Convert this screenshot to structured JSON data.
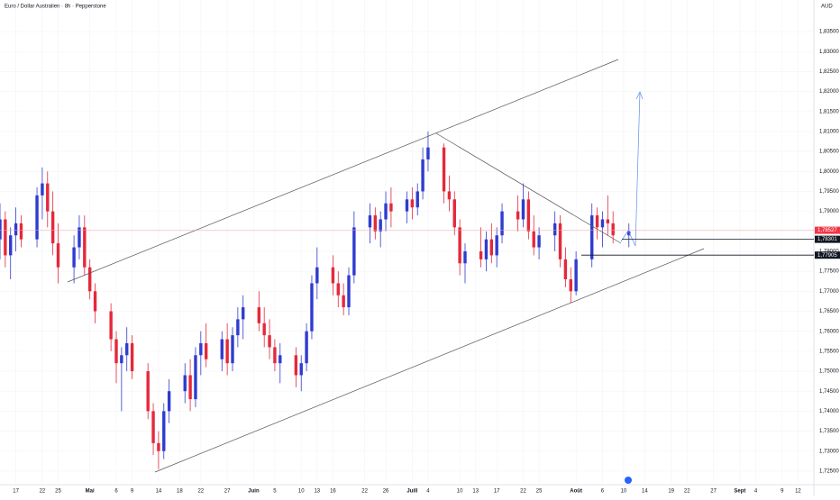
{
  "header": {
    "title": "Euro / Dollar Australien · 8h · Pepperstone",
    "currency": "AUD"
  },
  "chart_data": {
    "type": "candlestick",
    "up_color": "#2f3ccf",
    "down_color": "#e5283b",
    "ylim": [
      1.7216,
      1.8429
    ],
    "yticks": [
      {
        "value": 1.725,
        "label": "1,72500"
      },
      {
        "value": 1.73,
        "label": "1,73000"
      },
      {
        "value": 1.735,
        "label": "1,73500"
      },
      {
        "value": 1.74,
        "label": "1,74000"
      },
      {
        "value": 1.745,
        "label": "1,74500"
      },
      {
        "value": 1.75,
        "label": "1,75000"
      },
      {
        "value": 1.755,
        "label": "1,75500"
      },
      {
        "value": 1.76,
        "label": "1,76000"
      },
      {
        "value": 1.765,
        "label": "1,76500"
      },
      {
        "value": 1.77,
        "label": "1,77000"
      },
      {
        "value": 1.775,
        "label": "1,77500"
      },
      {
        "value": 1.78,
        "label": "1,78000"
      },
      {
        "value": 1.785,
        "label": "1,78500"
      },
      {
        "value": 1.79,
        "label": "1,79000"
      },
      {
        "value": 1.795,
        "label": "1,79500"
      },
      {
        "value": 1.8,
        "label": "1,80000"
      },
      {
        "value": 1.805,
        "label": "1,80500"
      },
      {
        "value": 1.81,
        "label": "1,81000"
      },
      {
        "value": 1.815,
        "label": "1,81500"
      },
      {
        "value": 1.82,
        "label": "1,82000"
      },
      {
        "value": 1.825,
        "label": "1,82500"
      },
      {
        "value": 1.83,
        "label": "1,83000"
      },
      {
        "value": 1.835,
        "label": "1,83500"
      }
    ],
    "xlim": [
      "04-14",
      "09-15"
    ],
    "xticks": [
      {
        "value": "04-17",
        "label": "17"
      },
      {
        "value": "04-22",
        "label": "22"
      },
      {
        "value": "04-25",
        "label": "25"
      },
      {
        "value": "05-01",
        "label": "Mai"
      },
      {
        "value": "05-06",
        "label": "6"
      },
      {
        "value": "05-09",
        "label": "9"
      },
      {
        "value": "05-14",
        "label": "14"
      },
      {
        "value": "05-18",
        "label": "18"
      },
      {
        "value": "05-22",
        "label": "22"
      },
      {
        "value": "05-27",
        "label": "27"
      },
      {
        "value": "06-01",
        "label": "Juin"
      },
      {
        "value": "06-05",
        "label": "5"
      },
      {
        "value": "06-10",
        "label": "10"
      },
      {
        "value": "06-13",
        "label": "13"
      },
      {
        "value": "06-16",
        "label": "16"
      },
      {
        "value": "06-22",
        "label": "22"
      },
      {
        "value": "06-26",
        "label": "26"
      },
      {
        "value": "07-01",
        "label": "Juill"
      },
      {
        "value": "07-04",
        "label": "4"
      },
      {
        "value": "07-10",
        "label": "10"
      },
      {
        "value": "07-13",
        "label": "13"
      },
      {
        "value": "07-17",
        "label": "17"
      },
      {
        "value": "07-22",
        "label": "22"
      },
      {
        "value": "07-25",
        "label": "25"
      },
      {
        "value": "08-01",
        "label": "Août"
      },
      {
        "value": "08-06",
        "label": "6"
      },
      {
        "value": "08-10",
        "label": "10"
      },
      {
        "value": "08-14",
        "label": "14"
      },
      {
        "value": "08-19",
        "label": "19"
      },
      {
        "value": "08-22",
        "label": "22"
      },
      {
        "value": "08-27",
        "label": "27"
      },
      {
        "value": "09-01",
        "label": "Sept"
      },
      {
        "value": "09-04",
        "label": "4"
      },
      {
        "value": "09-09",
        "label": "9"
      },
      {
        "value": "09-12",
        "label": "12"
      }
    ],
    "price_markers": [
      {
        "value": 1.78527,
        "label": "1,78527",
        "color": "#f23645"
      },
      {
        "value": 1.78301,
        "label": "1,78301",
        "color": "#131722"
      },
      {
        "value": 1.77905,
        "label": "1,77905",
        "color": "#131722"
      }
    ],
    "x": [
      "04-14",
      "04-15",
      "04-16",
      "04-17",
      "04-18",
      "04-21",
      "04-22",
      "04-23",
      "04-24",
      "04-25",
      "04-28",
      "04-29",
      "04-30",
      "05-01",
      "05-02",
      "05-05",
      "05-06",
      "05-07",
      "05-08",
      "05-09",
      "05-12",
      "05-13",
      "05-14",
      "05-15",
      "05-16",
      "05-19",
      "05-20",
      "05-21",
      "05-22",
      "05-23",
      "05-26",
      "05-27",
      "05-28",
      "05-29",
      "05-30",
      "06-02",
      "06-03",
      "06-04",
      "06-05",
      "06-06",
      "06-09",
      "06-10",
      "06-11",
      "06-12",
      "06-13",
      "06-16",
      "06-17",
      "06-18",
      "06-19",
      "06-20",
      "06-23",
      "06-24",
      "06-25",
      "06-26",
      "06-27",
      "06-30",
      "07-01",
      "07-02",
      "07-03",
      "07-04",
      "07-07",
      "07-08",
      "07-09",
      "07-10",
      "07-11",
      "07-14",
      "07-15",
      "07-16",
      "07-17",
      "07-18",
      "07-21",
      "07-22",
      "07-23",
      "07-24",
      "07-25",
      "07-28",
      "07-29",
      "07-30",
      "07-31",
      "08-01",
      "08-04",
      "08-05",
      "08-06",
      "08-07",
      "08-08",
      "08-11"
    ],
    "open": [
      1.783,
      1.788,
      1.779,
      1.784,
      1.787,
      1.783,
      1.794,
      1.797,
      1.79,
      1.782,
      1.776,
      1.781,
      1.786,
      1.776,
      1.77,
      1.765,
      1.758,
      1.752,
      1.754,
      1.757,
      1.75,
      1.74,
      1.732,
      1.73,
      1.74,
      1.745,
      1.749,
      1.743,
      1.754,
      1.757,
      1.753,
      1.758,
      1.752,
      1.759,
      1.763,
      1.766,
      1.762,
      1.759,
      1.756,
      1.752,
      1.754,
      1.749,
      1.752,
      1.76,
      1.772,
      1.776,
      1.772,
      1.769,
      1.766,
      1.774,
      1.786,
      1.789,
      1.785,
      1.788,
      1.792,
      1.79,
      1.793,
      1.791,
      1.795,
      1.803,
      1.806,
      1.795,
      1.793,
      1.786,
      1.777,
      1.78,
      1.778,
      1.783,
      1.779,
      1.784,
      1.79,
      1.788,
      1.793,
      1.785,
      1.781,
      1.784,
      1.787,
      1.778,
      1.773,
      1.77,
      1.778,
      1.789,
      1.786,
      1.788,
      1.787,
      1.784
    ],
    "high": [
      1.792,
      1.79,
      1.786,
      1.791,
      1.789,
      1.796,
      1.801,
      1.8,
      1.795,
      1.787,
      1.784,
      1.789,
      1.789,
      1.778,
      1.772,
      1.767,
      1.76,
      1.756,
      1.761,
      1.759,
      1.752,
      1.742,
      1.735,
      1.742,
      1.748,
      1.752,
      1.753,
      1.756,
      1.76,
      1.762,
      1.76,
      1.762,
      1.761,
      1.766,
      1.769,
      1.77,
      1.766,
      1.763,
      1.758,
      1.757,
      1.756,
      1.754,
      1.762,
      1.774,
      1.781,
      1.779,
      1.775,
      1.772,
      1.776,
      1.79,
      1.792,
      1.791,
      1.79,
      1.795,
      1.796,
      1.795,
      1.796,
      1.797,
      1.806,
      1.81,
      1.807,
      1.799,
      1.795,
      1.788,
      1.782,
      1.786,
      1.785,
      1.787,
      1.786,
      1.792,
      1.794,
      1.797,
      1.795,
      1.789,
      1.786,
      1.79,
      1.789,
      1.781,
      1.776,
      1.78,
      1.792,
      1.791,
      1.79,
      1.794,
      1.79,
      1.787
    ],
    "low": [
      1.778,
      1.776,
      1.773,
      1.78,
      1.781,
      1.781,
      1.788,
      1.786,
      1.779,
      1.772,
      1.772,
      1.778,
      1.774,
      1.768,
      1.762,
      1.755,
      1.747,
      1.74,
      1.75,
      1.748,
      1.738,
      1.729,
      1.7255,
      1.728,
      1.737,
      1.742,
      1.74,
      1.741,
      1.749,
      1.751,
      1.75,
      1.749,
      1.75,
      1.756,
      1.758,
      1.76,
      1.756,
      1.753,
      1.75,
      1.747,
      1.746,
      1.745,
      1.75,
      1.758,
      1.768,
      1.769,
      1.766,
      1.764,
      1.764,
      1.772,
      1.782,
      1.783,
      1.781,
      1.785,
      1.786,
      1.787,
      1.788,
      1.789,
      1.793,
      1.8,
      1.792,
      1.79,
      1.784,
      1.774,
      1.772,
      1.776,
      1.775,
      1.777,
      1.776,
      1.782,
      1.785,
      1.786,
      1.783,
      1.779,
      1.778,
      1.78,
      1.776,
      1.771,
      1.767,
      1.769,
      1.776,
      1.783,
      1.781,
      1.784,
      1.782,
      1.781
    ],
    "close": [
      1.788,
      1.779,
      1.784,
      1.787,
      1.783,
      1.794,
      1.797,
      1.79,
      1.782,
      1.776,
      1.781,
      1.786,
      1.776,
      1.77,
      1.765,
      1.758,
      1.752,
      1.754,
      1.757,
      1.75,
      1.74,
      1.732,
      1.73,
      1.74,
      1.745,
      1.749,
      1.743,
      1.754,
      1.757,
      1.753,
      1.758,
      1.752,
      1.759,
      1.763,
      1.766,
      1.762,
      1.759,
      1.756,
      1.752,
      1.754,
      1.749,
      1.752,
      1.76,
      1.772,
      1.776,
      1.772,
      1.769,
      1.766,
      1.774,
      1.786,
      1.789,
      1.785,
      1.788,
      1.792,
      1.79,
      1.793,
      1.791,
      1.795,
      1.803,
      1.806,
      1.795,
      1.793,
      1.786,
      1.777,
      1.78,
      1.778,
      1.783,
      1.779,
      1.784,
      1.79,
      1.788,
      1.793,
      1.785,
      1.781,
      1.784,
      1.787,
      1.778,
      1.773,
      1.77,
      1.778,
      1.789,
      1.786,
      1.788,
      1.787,
      1.784,
      1.785
    ]
  }
}
